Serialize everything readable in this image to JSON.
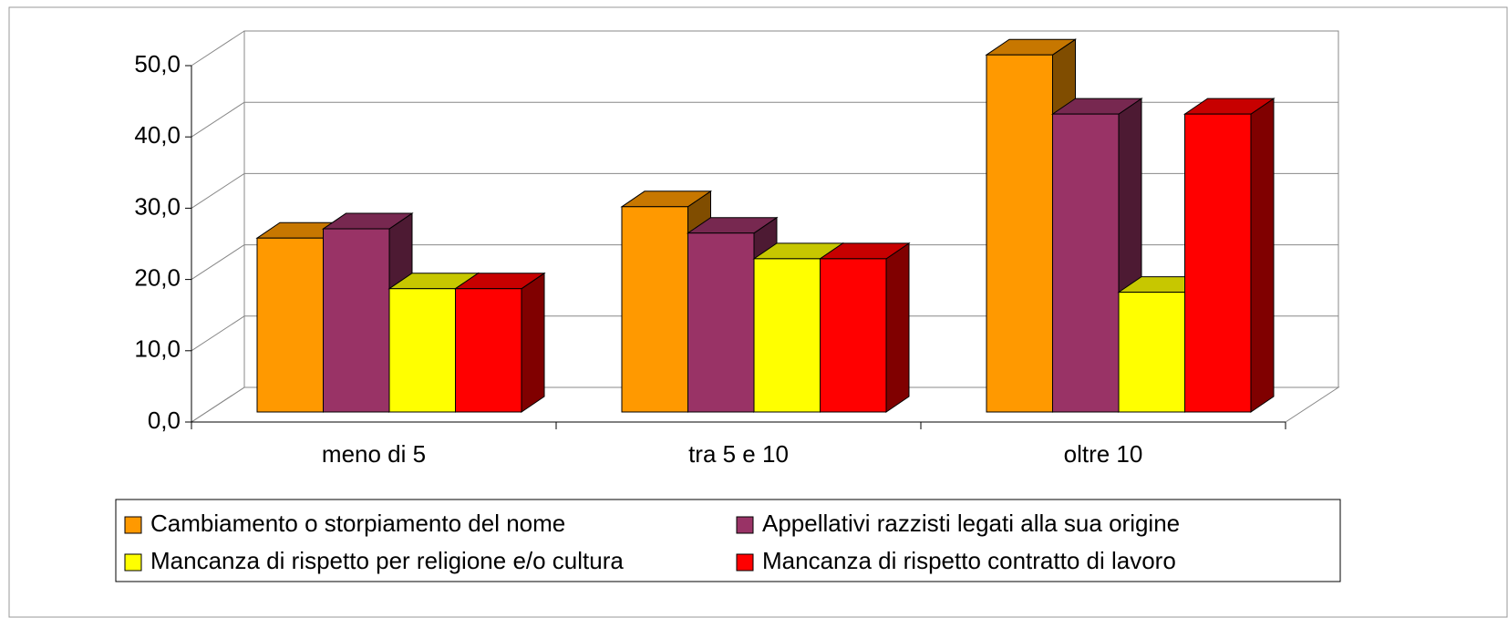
{
  "chart_data": {
    "type": "bar3d",
    "categories": [
      "meno di 5",
      "tra 5 e 10",
      "oltre 10"
    ],
    "series": [
      {
        "name": "Cambiamento o storpiamento del nome",
        "color": "#ff9900",
        "values": [
          24.4,
          28.8,
          50.1
        ]
      },
      {
        "name": "Appellativi razzisti legati alla sua origine",
        "color": "#993366",
        "values": [
          25.7,
          25.1,
          41.8
        ]
      },
      {
        "name": "Mancanza di rispetto per religione e/o cultura",
        "color": "#ffff00",
        "values": [
          17.3,
          21.5,
          16.8
        ]
      },
      {
        "name": "Mancanza di rispetto contratto di lavoro",
        "color": "#ff0000",
        "values": [
          17.3,
          21.5,
          41.8
        ]
      }
    ],
    "ylim": [
      0,
      50
    ],
    "yticks": [
      {
        "value": 0,
        "label": "0,0"
      },
      {
        "value": 10,
        "label": "10,0"
      },
      {
        "value": 20,
        "label": "20,0"
      },
      {
        "value": 30,
        "label": "30,0"
      },
      {
        "value": 40,
        "label": "40,0"
      },
      {
        "value": 50,
        "label": "50,0"
      }
    ],
    "grid": true,
    "legend": "bottom"
  }
}
